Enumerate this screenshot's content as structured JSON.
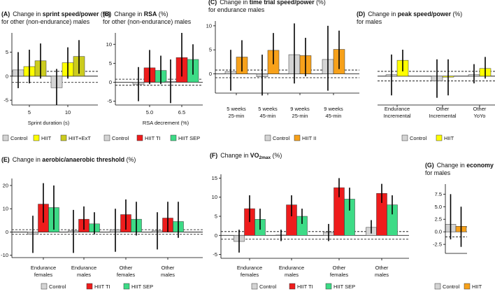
{
  "colors": {
    "control": "#d4d4d4",
    "hiit": "#ffff00",
    "hiit_ext": "#cccc1e",
    "hiit_ti": "#ee1c1c",
    "hiit_sep": "#3ddb86",
    "hiit_ii": "#f7a11a",
    "axis": "#000000"
  },
  "chart_data": [
    {
      "id": "A",
      "type": "bar",
      "title_letter": "(A)",
      "title_pre": "Change in ",
      "title_bold": "sprint speed/power",
      "title_post": " (%)",
      "subtitle": "for other (non-endurance)  males",
      "xlabel": "Sprint duration  (s)",
      "ylim": [
        -6,
        9
      ],
      "yticks": [
        -5,
        0,
        5
      ],
      "yticklabels": [
        "-5",
        "0",
        "5"
      ],
      "ref_lines": [
        1,
        -1.3
      ],
      "categories": [
        "5",
        "10"
      ],
      "series": [
        {
          "name": "Control",
          "color_key": "control",
          "values": [
            1.3,
            -2.4
          ],
          "errors": [
            [
              -2.5,
              5
            ],
            [
              -6,
              1.5
            ]
          ]
        },
        {
          "name": "HIIT",
          "color_key": "hiit",
          "values": [
            2,
            2.8
          ],
          "errors": [
            [
              -1.5,
              5.5
            ],
            [
              -0.5,
              6
            ]
          ]
        },
        {
          "name": "HIIT+ExT",
          "color_key": "hiit_ext",
          "values": [
            3.2,
            4.1
          ],
          "errors": [
            [
              -0.5,
              6.8
            ],
            [
              0.5,
              7.5
            ]
          ]
        }
      ],
      "legend": [
        "Control",
        "HIIT",
        "HIIT+ExT"
      ]
    },
    {
      "id": "B",
      "type": "bar",
      "title_letter": "(B)",
      "title_pre": "Change in ",
      "title_bold": "RSA",
      "title_post": " (%)",
      "subtitle": "for other (non-endurance)  males",
      "xlabel": "RSA decrement  (%)",
      "ylim": [
        -6,
        13
      ],
      "yticks": [
        -5,
        0,
        5,
        10
      ],
      "yticklabels": [
        "-5",
        "0",
        "5",
        "10"
      ],
      "ref_lines": [
        0.8,
        -0.8
      ],
      "categories": [
        "5.0",
        "6.5"
      ],
      "series": [
        {
          "name": "Control",
          "color_key": "control",
          "values": [
            -0.5,
            0.2
          ],
          "errors": [
            [
              -5,
              4
            ],
            [
              -5.5,
              6
            ]
          ]
        },
        {
          "name": "HIIT  TI",
          "color_key": "hiit_ti",
          "values": [
            3.8,
            6.5
          ],
          "errors": [
            [
              -0.5,
              8.5
            ],
            [
              1.5,
              13
            ]
          ]
        },
        {
          "name": "HIIT  SEP",
          "color_key": "hiit_sep",
          "values": [
            3.1,
            6
          ],
          "errors": [
            [
              -0.5,
              7
            ],
            [
              2,
              10
            ]
          ]
        }
      ],
      "legend": [
        "Control",
        "HIIT  TI",
        "HIIT  SEP"
      ]
    },
    {
      "id": "C",
      "type": "bar",
      "title_letter": "(C)",
      "title_pre": "Change in ",
      "title_bold": "time trial speed/power",
      "title_post": " (%)",
      "subtitle": "for endurance males",
      "xlabel": "",
      "ylim": [
        -4,
        11
      ],
      "yticks": [
        0,
        5,
        10
      ],
      "yticklabels": [
        "0",
        "5",
        "10"
      ],
      "ref_lines": [
        0.8,
        -0.8
      ],
      "categories": [
        "5 weeks|25-min",
        "5 weeks|45-min",
        "9 weeks|25-min",
        "9 weeks|45-min"
      ],
      "series": [
        {
          "name": "Control",
          "color_key": "control",
          "values": [
            0.5,
            -0.6,
            4,
            3
          ],
          "errors": [
            [
              -3.5,
              5
            ],
            [
              -4.5,
              4
            ],
            [
              -2,
              10.5
            ],
            [
              -3.5,
              10
            ]
          ]
        },
        {
          "name": "HIIT  II",
          "color_key": "hiit_ii",
          "values": [
            3.5,
            4.9,
            3.8,
            5.1
          ],
          "errors": [
            [
              0.5,
              7
            ],
            [
              2,
              8.5
            ],
            [
              -0.5,
              7.5
            ],
            [
              1,
              9
            ]
          ]
        }
      ],
      "legend": [
        "Control",
        "HIIT  II"
      ]
    },
    {
      "id": "D",
      "type": "bar",
      "title_letter": "(D)",
      "title_pre": "Change in ",
      "title_bold": "peak speed/power",
      "title_post": " (%)",
      "subtitle": "for males",
      "xlabel": "",
      "ylim": [
        -6,
        9
      ],
      "yticks": [],
      "yticklabels": [],
      "ref_lines": [
        1,
        -1
      ],
      "categories": [
        "Endurance|Incremental",
        "Other|Incremental",
        "Other|YoYo"
      ],
      "series": [
        {
          "name": "Control",
          "color_key": "control",
          "values": [
            0.3,
            -1,
            0.3
          ],
          "errors": [
            [
              -4,
              4.5
            ],
            [
              -4.5,
              3.5
            ],
            [
              -1.5,
              2.5
            ]
          ]
        },
        {
          "name": "HIIT",
          "color_key": "hiit",
          "values": [
            3.3,
            -0.2,
            1.6
          ],
          "errors": [
            [
              1,
              5.5
            ],
            [
              -4,
              3.5
            ],
            [
              -0.5,
              4
            ]
          ]
        }
      ],
      "legend": [
        "Control",
        "HIIT"
      ]
    },
    {
      "id": "E",
      "type": "bar",
      "title_letter": "(E)",
      "title_pre": "Change in ",
      "title_bold": "aerobic/anaerobic threshold",
      "title_post": " (%)",
      "subtitle": "",
      "xlabel": "",
      "ylim": [
        -11,
        23
      ],
      "yticks": [
        -10,
        0,
        10,
        20
      ],
      "yticklabels": [
        "-10",
        "0",
        "10",
        "20"
      ],
      "ref_lines": [
        1,
        -1
      ],
      "categories": [
        "Endurance|females",
        "Endurance|males",
        "Other|females",
        "Other|males"
      ],
      "series": [
        {
          "name": "Control",
          "color_key": "control",
          "values": [
            -1,
            0.5,
            1,
            0.5
          ],
          "errors": [
            [
              -9,
              7
            ],
            [
              -9,
              9.5
            ],
            [
              -8.5,
              10
            ],
            [
              -7.5,
              8.5
            ]
          ]
        },
        {
          "name": "HIIT  TI",
          "color_key": "hiit_ti",
          "values": [
            12,
            5.5,
            7.5,
            6
          ],
          "errors": [
            [
              4,
              21
            ],
            [
              1,
              11
            ],
            [
              1,
              14
            ],
            [
              0,
              13
            ]
          ]
        },
        {
          "name": "HIIT  SEP",
          "color_key": "hiit_sep",
          "values": [
            10.5,
            3.5,
            5.5,
            4.5
          ],
          "errors": [
            [
              1,
              20
            ],
            [
              -1,
              8.5
            ],
            [
              -1.5,
              13
            ],
            [
              -2.5,
              13
            ]
          ]
        }
      ],
      "legend": [
        "Control",
        "HIIT  TI",
        "HIIT  SEP"
      ]
    },
    {
      "id": "F",
      "type": "bar",
      "title_letter": "(F)",
      "title_pre": "Change in ",
      "title_bold": "VO",
      "title_sub": "2max",
      "title_post": " (%)",
      "subtitle": "",
      "xlabel": "",
      "ylim": [
        -6,
        16
      ],
      "yticks": [
        -5,
        0,
        5,
        10,
        15
      ],
      "yticklabels": [
        "-5",
        "0",
        "5",
        "10",
        "15"
      ],
      "ref_lines": [
        1,
        -1
      ],
      "categories": [
        "Endurance|females",
        "Endurance|males",
        "Other|females",
        "Other|males"
      ],
      "series": [
        {
          "name": "Control",
          "color_key": "control",
          "values": [
            -1.6,
            0.1,
            0.8,
            2.1
          ],
          "errors": [
            [
              -4.5,
              1.5
            ],
            [
              -1.5,
              1.5
            ],
            [
              -1.5,
              3
            ],
            [
              0.5,
              4
            ]
          ]
        },
        {
          "name": "HIIT  TI",
          "color_key": "hiit_ti",
          "values": [
            7,
            8,
            12.5,
            11
          ],
          "errors": [
            [
              3.5,
              10.5
            ],
            [
              5,
              10.5
            ],
            [
              10,
              15
            ],
            [
              8.5,
              13.5
            ]
          ]
        },
        {
          "name": "HIIT  SEP",
          "color_key": "hiit_sep",
          "values": [
            4.2,
            5,
            9.5,
            8
          ],
          "errors": [
            [
              1.5,
              7
            ],
            [
              3,
              7
            ],
            [
              6.5,
              12.5
            ],
            [
              5.5,
              10.5
            ]
          ]
        }
      ],
      "legend": [
        "Control",
        "HIIT  TI",
        "HIIT  SEP"
      ]
    },
    {
      "id": "G",
      "type": "bar",
      "title_letter": "(G)",
      "title_pre": "Change in ",
      "title_bold": "economy",
      "title_post": " (%)",
      "subtitle": "for males",
      "xlabel": "",
      "ylim": [
        -4.3,
        9.5
      ],
      "yticks": [
        -2.5,
        0,
        2.5,
        5,
        7.5
      ],
      "yticklabels": [
        "-2.5",
        "0.0",
        "2.5",
        "5.0",
        "7.5"
      ],
      "ref_lines": [
        1,
        -1
      ],
      "categories": [
        ""
      ],
      "series": [
        {
          "name": "Control",
          "color_key": "control",
          "values": [
            1.5
          ],
          "errors": [
            [
              -1.5,
              7.5
            ]
          ]
        },
        {
          "name": "HIIT",
          "color_key": "hiit_ii",
          "values": [
            1.1
          ],
          "errors": [
            [
              -3,
              5
            ]
          ]
        }
      ],
      "legend": [
        "Control",
        "HIIT"
      ]
    }
  ]
}
